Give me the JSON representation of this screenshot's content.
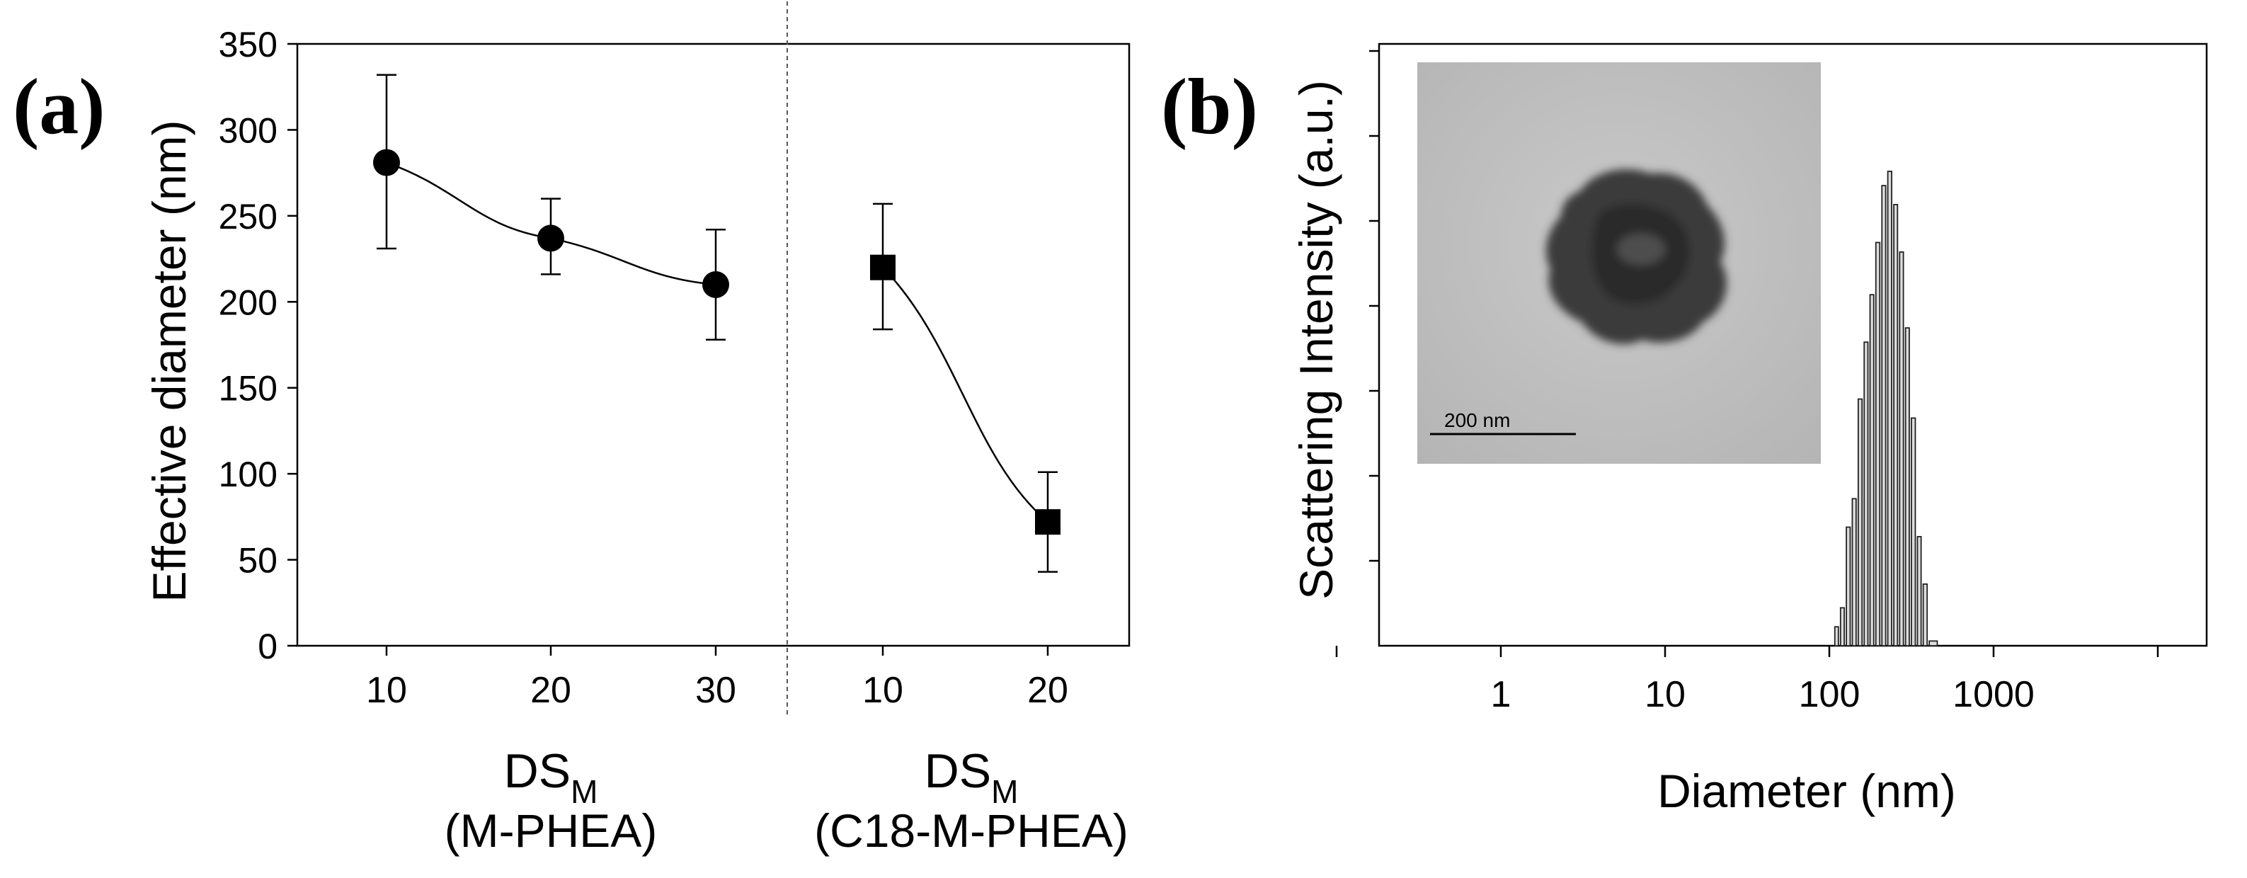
{
  "chart_data": [
    {
      "panel": "(a)",
      "type": "scatter",
      "ylabel": "Effective diameter (nm)",
      "ylim": [
        0,
        350
      ],
      "yticks": [
        "0",
        "50",
        "100",
        "150",
        "200",
        "250",
        "300",
        "350"
      ],
      "groups": [
        {
          "name": "M-PHEA",
          "xlabel_main": "DS",
          "xlabel_sub": "M",
          "xlabel_line2": "(M-PHEA)",
          "marker": "circle",
          "points": [
            {
              "x": "10",
              "y": 281,
              "err_low": 231,
              "err_high": 332
            },
            {
              "x": "20",
              "y": 237,
              "err_low": 216,
              "err_high": 260
            },
            {
              "x": "30",
              "y": 210,
              "err_low": 178,
              "err_high": 242
            }
          ]
        },
        {
          "name": "C18-M-PHEA",
          "xlabel_main": "DS",
          "xlabel_sub": "M",
          "xlabel_line2": "(C18-M-PHEA)",
          "marker": "square",
          "points": [
            {
              "x": "10",
              "y": 220,
              "err_low": 184,
              "err_high": 257
            },
            {
              "x": "20",
              "y": 72,
              "err_low": 43,
              "err_high": 101
            }
          ]
        }
      ]
    },
    {
      "panel": "(b)",
      "type": "bar",
      "xscale": "log",
      "xlabel": "Diameter (nm)",
      "ylabel": "Scattering Intensity (a.u.)",
      "xticks": [
        "1",
        "10",
        "100",
        "1000"
      ],
      "ylim": [
        0,
        1
      ],
      "bars": [
        {
          "d": 108,
          "v": 0.04
        },
        {
          "d": 117,
          "v": 0.08
        },
        {
          "d": 127,
          "v": 0.25
        },
        {
          "d": 138,
          "v": 0.31
        },
        {
          "d": 150,
          "v": 0.52
        },
        {
          "d": 163,
          "v": 0.64
        },
        {
          "d": 177,
          "v": 0.74
        },
        {
          "d": 192,
          "v": 0.85
        },
        {
          "d": 209,
          "v": 0.97
        },
        {
          "d": 227,
          "v": 1.0
        },
        {
          "d": 247,
          "v": 0.93
        },
        {
          "d": 268,
          "v": 0.83
        },
        {
          "d": 291,
          "v": 0.67
        },
        {
          "d": 316,
          "v": 0.48
        },
        {
          "d": 344,
          "v": 0.23
        },
        {
          "d": 373,
          "v": 0.13
        },
        {
          "d": 406,
          "v": 0.01
        }
      ],
      "inset": {
        "scalebar_label": "200 nm"
      }
    }
  ]
}
